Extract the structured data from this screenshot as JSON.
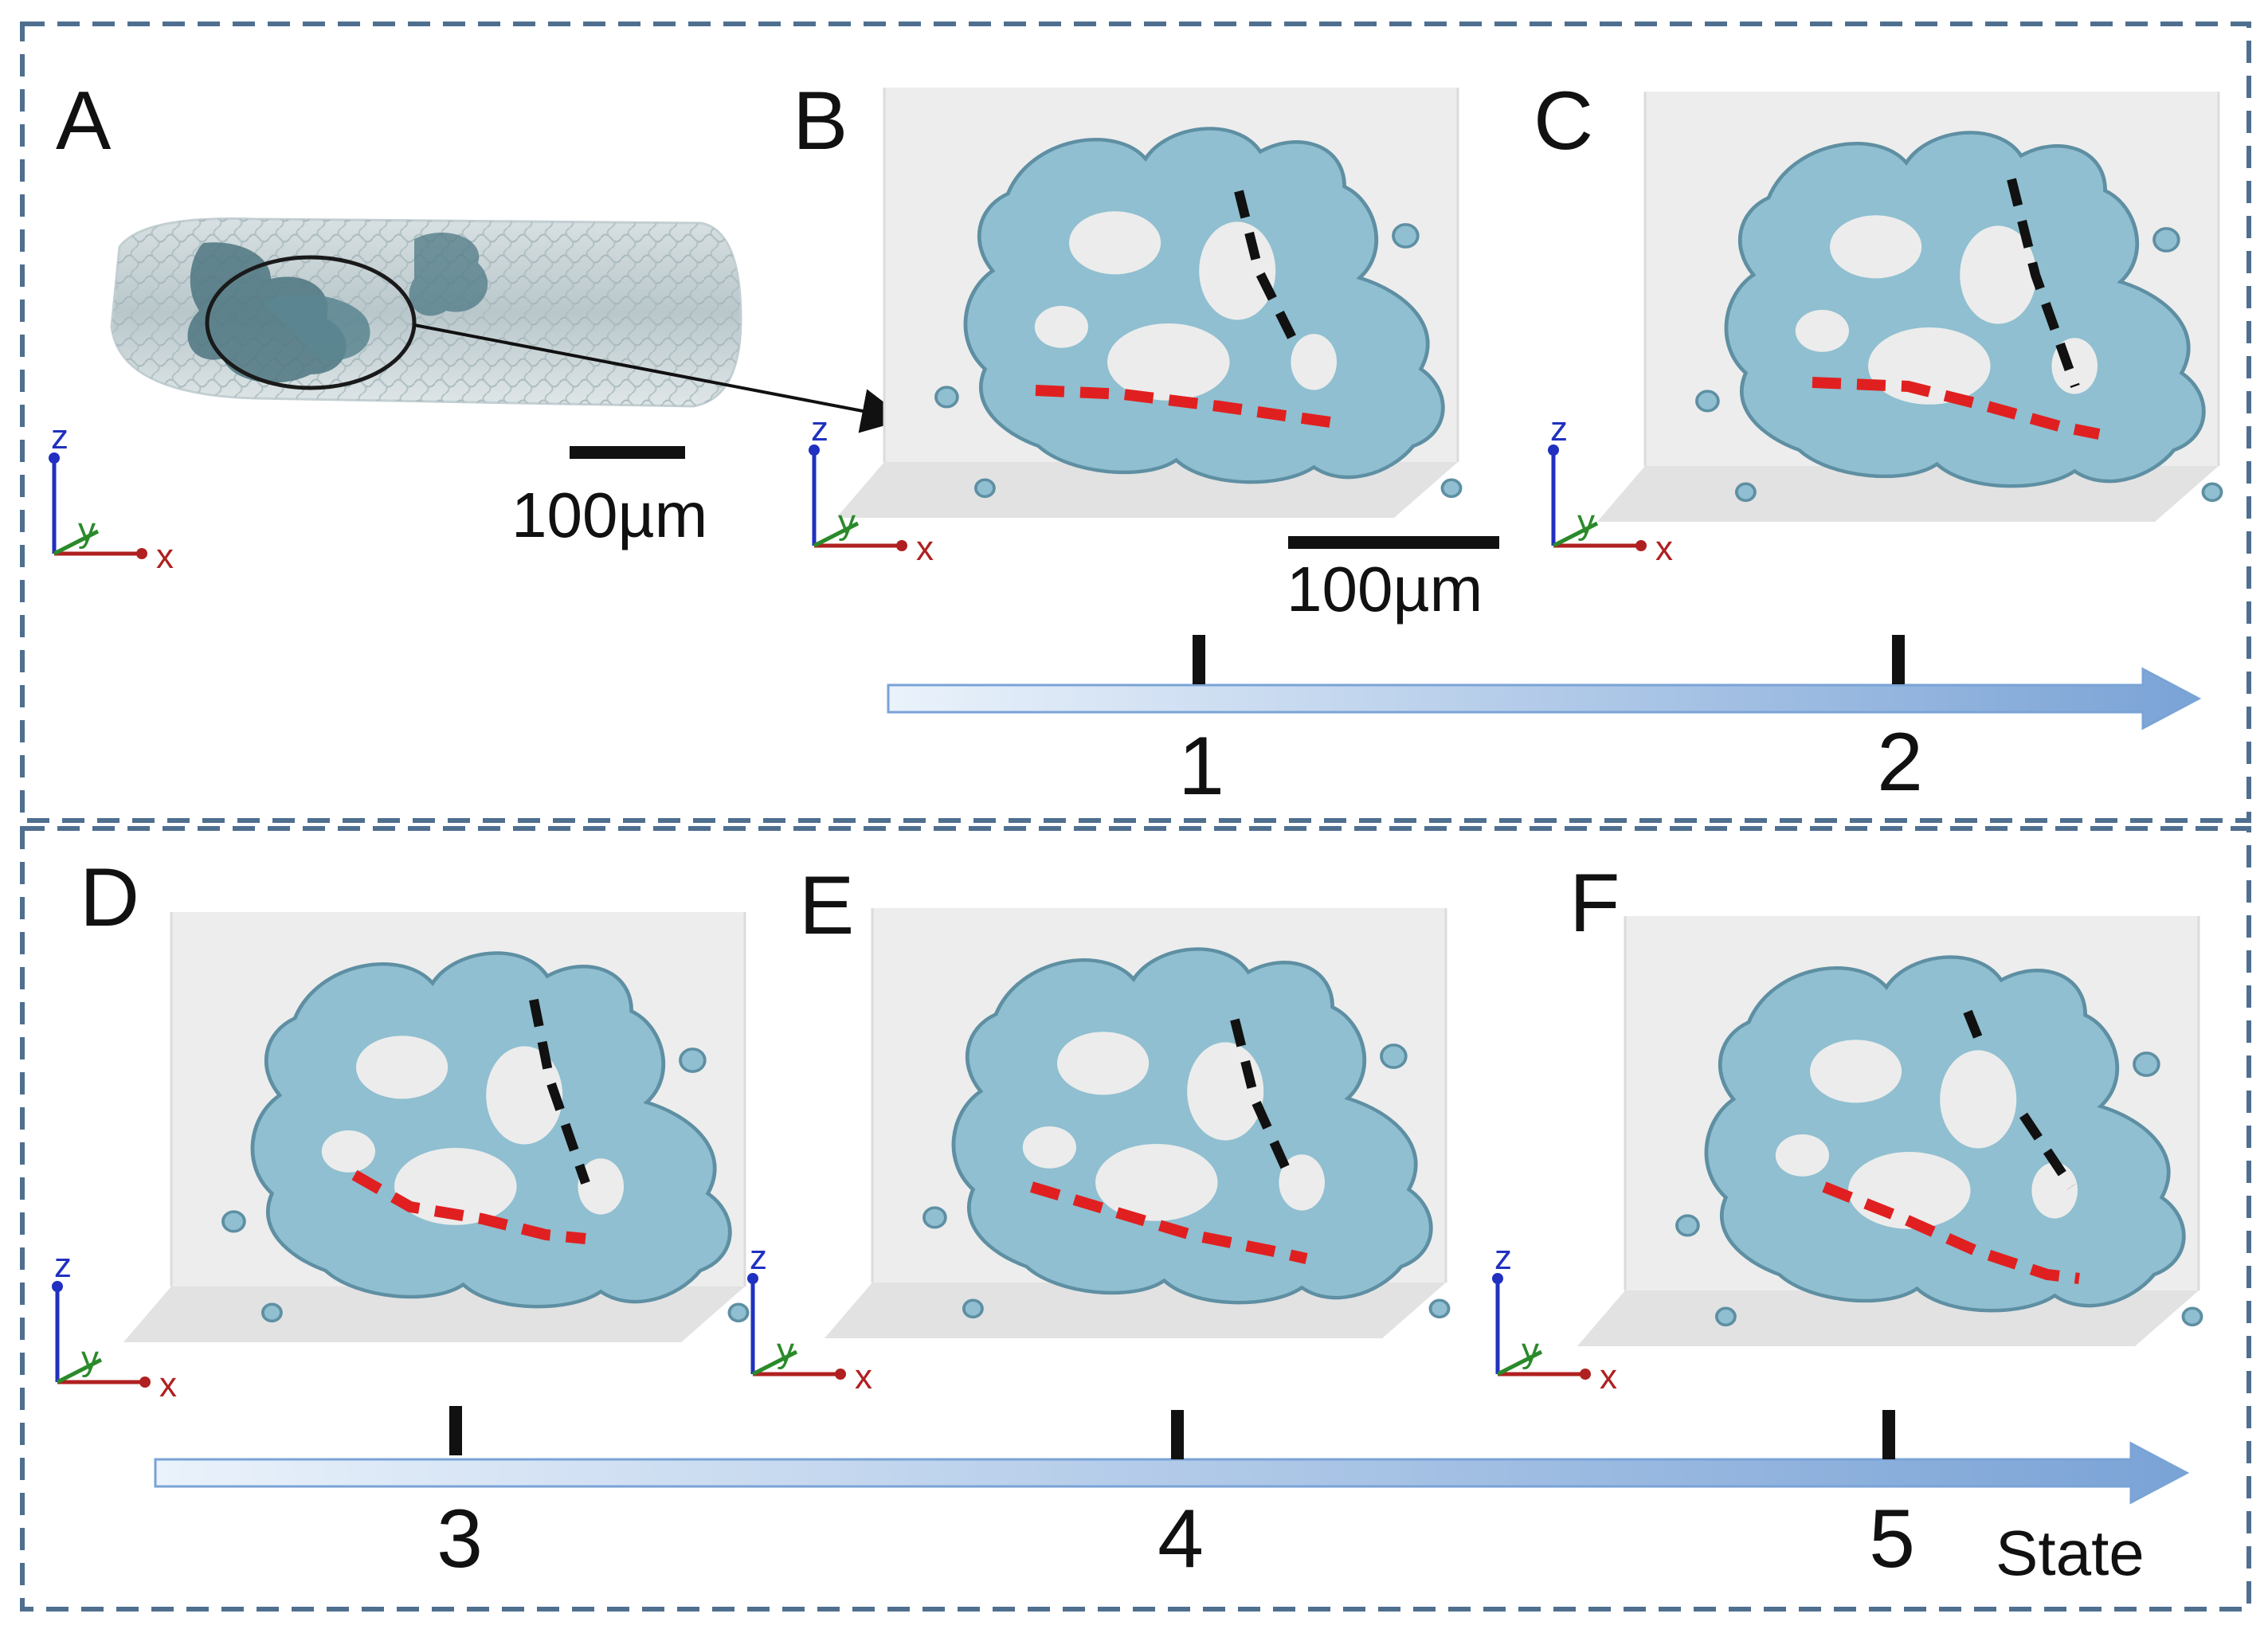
{
  "panels": {
    "A": "A",
    "B": "B",
    "C": "C",
    "D": "D",
    "E": "E",
    "F": "F"
  },
  "scale_bars": {
    "overview_label": "100µm",
    "detail_label": "100µm"
  },
  "axes": {
    "x": "x",
    "y": "y",
    "z": "z"
  },
  "timeline": {
    "top_ticks": [
      "1",
      "2"
    ],
    "bottom_ticks": [
      "3",
      "4",
      "5"
    ],
    "axis_label": "State"
  },
  "colors": {
    "frame_dash": "#4f6f8f",
    "network": "#8fbfd0",
    "network_edge": "#5e8fa3",
    "box_face": "#ececec",
    "red_path": "#e02020",
    "black_path": "#111111",
    "arrow_light": "#eaf2fb",
    "arrow_dark": "#7aa3d6",
    "axis_x": "#b02020",
    "axis_y": "#2a8a2a",
    "axis_z": "#2030c0"
  }
}
